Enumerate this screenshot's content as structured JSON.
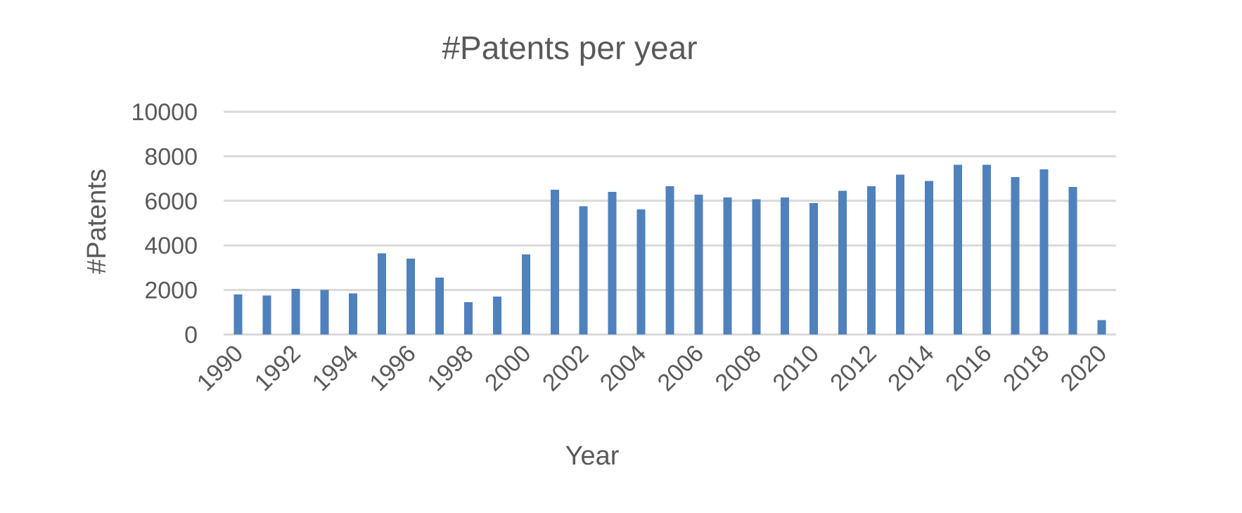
{
  "chart_data": {
    "type": "bar",
    "title": "#Patents per year",
    "xlabel": "Year",
    "ylabel": "#Patents",
    "ylim": [
      0,
      10000
    ],
    "yticks": [
      "0",
      "2000",
      "4000",
      "6000",
      "8000",
      "10000"
    ],
    "xtick_labels": [
      "1990",
      "1992",
      "1994",
      "1996",
      "1998",
      "2000",
      "2002",
      "2004",
      "2006",
      "2008",
      "2010",
      "2012",
      "2014",
      "2016",
      "2018",
      "2020"
    ],
    "grid": true,
    "legend": "none",
    "bar_color": "#4f81bd",
    "categories": [
      1990,
      1991,
      1992,
      1993,
      1994,
      1995,
      1996,
      1997,
      1998,
      1999,
      2000,
      2001,
      2002,
      2003,
      2004,
      2005,
      2006,
      2007,
      2008,
      2009,
      2010,
      2011,
      2012,
      2013,
      2014,
      2015,
      2016,
      2017,
      2018,
      2019,
      2020
    ],
    "values": [
      1800,
      1750,
      2050,
      2000,
      1850,
      3650,
      3400,
      2550,
      1450,
      1700,
      3600,
      6500,
      5750,
      6400,
      5620,
      6650,
      6280,
      6150,
      6080,
      6150,
      5900,
      6450,
      6650,
      7170,
      6900,
      7620,
      7620,
      7070,
      7420,
      6630,
      650
    ]
  }
}
